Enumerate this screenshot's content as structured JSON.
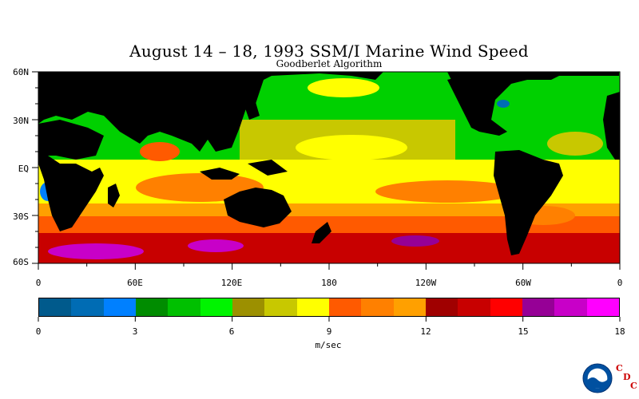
{
  "title": "August 14 – 18, 1993 SSM/I Marine Wind Speed",
  "subtitle": "Goodberlet Algorithm",
  "map": {
    "projection": "equirectangular",
    "lon_range": [
      0,
      360
    ],
    "lat_range": [
      -60,
      60
    ],
    "land_color": "#000000",
    "lat_labels": [
      "60N",
      "30N",
      "EQ",
      "30S",
      "60S"
    ],
    "lon_labels": [
      "0",
      "60E",
      "120E",
      "180",
      "120W",
      "60W",
      "0"
    ]
  },
  "colorbar": {
    "unit": "m/sec",
    "range": [
      0,
      18
    ],
    "tick_labels": [
      "0",
      "3",
      "6",
      "9",
      "12",
      "15",
      "18"
    ],
    "colors": [
      "#005a8c",
      "#006cb4",
      "#0080ff",
      "#008c00",
      "#00c000",
      "#00f400",
      "#9c9000",
      "#c8c800",
      "#ffff00",
      "#ff5a00",
      "#ff8000",
      "#ffa000",
      "#a00000",
      "#c80000",
      "#ff0000",
      "#960096",
      "#c800c8",
      "#ff00ff"
    ]
  },
  "logo": {
    "emblem_text": "NOAA",
    "letters": [
      "C",
      "D",
      "C"
    ]
  }
}
